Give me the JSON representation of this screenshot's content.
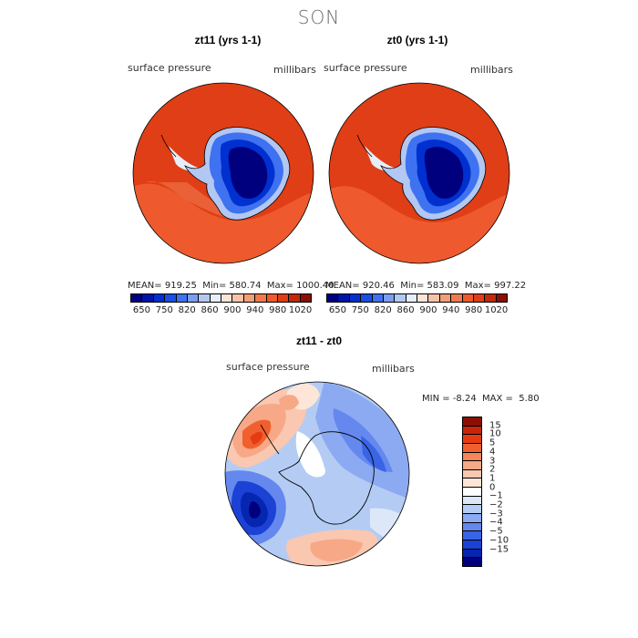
{
  "season": "SON",
  "panels": [
    {
      "title": "zt11 (yrs 1-1)",
      "variable": "surface pressure",
      "units": "millibars",
      "stats": {
        "mean_label": "MEAN=",
        "mean": "919.25",
        "min_label": "Min=",
        "min": "580.74",
        "max_label": "Max=",
        "max": "1000.40"
      }
    },
    {
      "title": "zt0 (yrs 1-1)",
      "variable": "surface pressure",
      "units": "millibars",
      "stats": {
        "mean_label": "MEAN=",
        "mean": "920.46",
        "min_label": "Min=",
        "min": "583.09",
        "max_label": "Max=",
        "max": "997.22"
      }
    }
  ],
  "abs_colorbar": {
    "colors": [
      "#00007f",
      "#0014a8",
      "#0030d0",
      "#1a4fe6",
      "#3f72f0",
      "#7c9ef0",
      "#b2c8f2",
      "#e6eefa",
      "#fbe5d8",
      "#f8c3a8",
      "#f49e78",
      "#f07a4e",
      "#ee5a2e",
      "#e03e16",
      "#c02a0a",
      "#8c0f05"
    ],
    "labels": [
      "650",
      "750",
      "820",
      "860",
      "900",
      "940",
      "980",
      "1020"
    ]
  },
  "diff": {
    "title": "zt11 - zt0",
    "variable": "surface pressure",
    "units": "millibars",
    "min_label": "MIN =",
    "min": "-8.24",
    "max_label": "MAX =",
    "max": "5.80"
  },
  "diff_colorbar": {
    "colors": [
      "#8c0f05",
      "#c8240a",
      "#e63b12",
      "#f0602e",
      "#f4865a",
      "#f7a887",
      "#fac7b0",
      "#fde6d8",
      "#ffffff",
      "#dce8f8",
      "#b4ccf4",
      "#8caaf2",
      "#6488ee",
      "#3a64e6",
      "#1b42d4",
      "#0626b0",
      "#00007f"
    ],
    "labels": [
      "15",
      "10",
      "5",
      "4",
      "3",
      "2",
      "1",
      "0",
      "−1",
      "−2",
      "−3",
      "−4",
      "−5",
      "−10",
      "−15"
    ]
  }
}
